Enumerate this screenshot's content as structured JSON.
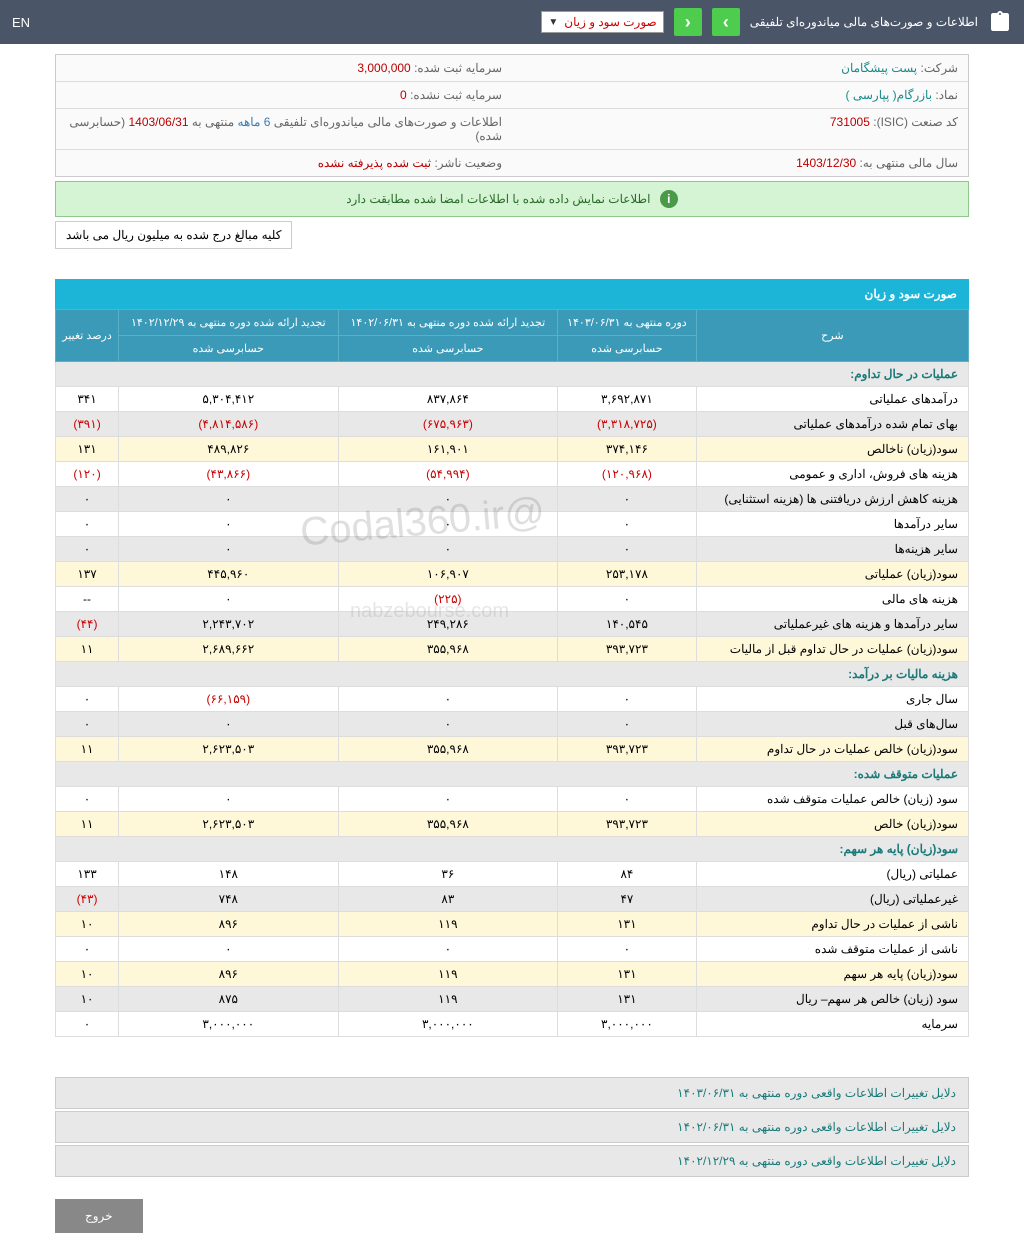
{
  "header": {
    "title": "اطلاعات و صورت‌های مالی میاندوره‌ای تلفیقی",
    "dropdown": "صورت سود و زیان",
    "lang": "EN"
  },
  "info": {
    "company_label": "شرکت:",
    "company": "پست پیشگامان",
    "capital_reg_label": "سرمایه ثبت شده:",
    "capital_reg": "3,000,000",
    "symbol_label": "نماد:",
    "symbol": "بازرگام( پپارسی )",
    "capital_unreg_label": "سرمایه ثبت نشده:",
    "capital_unreg": "0",
    "isic_label": "کد صنعت (ISIC):",
    "isic": "731005",
    "report_label": "اطلاعات و صورت‌های مالی میاندوره‌ای تلفیقی",
    "period": "6 ماهه",
    "ending": "منتهی به",
    "ending_date": "1403/06/31",
    "audited": "(حسابرسی شده)",
    "fiscal_label": "سال مالی منتهی به:",
    "fiscal": "1403/12/30",
    "status_label": "وضعیت ناشر:",
    "status": "ثبت شده پذیرفته نشده"
  },
  "alert": "اطلاعات نمایش داده شده با اطلاعات امضا شده مطابقت دارد",
  "note": "کلیه مبالغ درج شده به میلیون ریال می باشد",
  "table_title": "صورت سود و زیان",
  "columns": {
    "desc": "شرح",
    "c1_top": "دوره منتهی به ۱۴۰۳/۰۶/۳۱",
    "c1_sub": "حسابرسی شده",
    "c2_top": "تجدید ارائه شده دوره منتهی به ۱۴۰۲/۰۶/۳۱",
    "c2_sub": "حسابرسی شده",
    "c3_top": "تجدید ارائه شده دوره منتهی به ۱۴۰۲/۱۲/۲۹",
    "c3_sub": "حسابرسی شده",
    "pct": "درصد تغییر"
  },
  "sections": {
    "s1": "عملیات در حال تداوم:",
    "s2": "هزینه مالیات بر درآمد:",
    "s3": "عملیات متوقف شده:",
    "s4": "سود(زیان) پایه هر سهم:"
  },
  "rows": [
    {
      "cls": "row-white",
      "label": "درآمدهای عملیاتی",
      "v1": "۳,۶۹۲,۸۷۱",
      "v2": "۸۳۷,۸۶۴",
      "v3": "۵,۳۰۴,۴۱۲",
      "pct": "۳۴۱",
      "neg": []
    },
    {
      "cls": "row-gray",
      "label": "بهای تمام شده درآمدهای عملیاتی",
      "v1": "(۳,۳۱۸,۷۲۵)",
      "v2": "(۶۷۵,۹۶۳)",
      "v3": "(۴,۸۱۴,۵۸۶)",
      "pct": "(۳۹۱)",
      "neg": [
        "v1",
        "v2",
        "v3",
        "pct"
      ]
    },
    {
      "cls": "row-yellow",
      "label": "سود(زیان) ناخالص",
      "v1": "۳۷۴,۱۴۶",
      "v2": "۱۶۱,۹۰۱",
      "v3": "۴۸۹,۸۲۶",
      "pct": "۱۳۱",
      "neg": []
    },
    {
      "cls": "row-white",
      "label": "هزینه های فروش، اداری و عمومی",
      "v1": "(۱۲۰,۹۶۸)",
      "v2": "(۵۴,۹۹۴)",
      "v3": "(۴۳,۸۶۶)",
      "pct": "(۱۲۰)",
      "neg": [
        "v1",
        "v2",
        "v3",
        "pct"
      ]
    },
    {
      "cls": "row-gray",
      "label": "هزینه کاهش ارزش دریافتنی ها (هزینه استثنایی)",
      "v1": "۰",
      "v2": "۰",
      "v3": "۰",
      "pct": "۰",
      "neg": []
    },
    {
      "cls": "row-white",
      "label": "سایر درآمدها",
      "v1": "۰",
      "v2": "۰",
      "v3": "۰",
      "pct": "۰",
      "neg": []
    },
    {
      "cls": "row-gray",
      "label": "سایر هزینه‌ها",
      "v1": "۰",
      "v2": "۰",
      "v3": "۰",
      "pct": "۰",
      "neg": []
    },
    {
      "cls": "row-yellow",
      "label": "سود(زیان) عملیاتی",
      "v1": "۲۵۳,۱۷۸",
      "v2": "۱۰۶,۹۰۷",
      "v3": "۴۴۵,۹۶۰",
      "pct": "۱۳۷",
      "neg": []
    },
    {
      "cls": "row-white",
      "label": "هزینه های مالی",
      "v1": "۰",
      "v2": "(۲۲۵)",
      "v3": "۰",
      "pct": "--",
      "neg": [
        "v2"
      ]
    },
    {
      "cls": "row-gray",
      "label": "سایر درآمدها و هزینه های غیرعملیاتی",
      "v1": "۱۴۰,۵۴۵",
      "v2": "۲۴۹,۲۸۶",
      "v3": "۲,۲۴۳,۷۰۲",
      "pct": "(۴۴)",
      "neg": [
        "pct"
      ]
    },
    {
      "cls": "row-yellow",
      "label": "سود(زیان) عملیات در حال تداوم قبل از مالیات",
      "v1": "۳۹۳,۷۲۳",
      "v2": "۳۵۵,۹۶۸",
      "v3": "۲,۶۸۹,۶۶۲",
      "pct": "۱۱",
      "neg": []
    }
  ],
  "rows2": [
    {
      "cls": "row-white",
      "label": "سال جاری",
      "v1": "۰",
      "v2": "۰",
      "v3": "(۶۶,۱۵۹)",
      "pct": "۰",
      "neg": [
        "v3"
      ]
    },
    {
      "cls": "row-gray",
      "label": "سال‌های قبل",
      "v1": "۰",
      "v2": "۰",
      "v3": "۰",
      "pct": "۰",
      "neg": []
    },
    {
      "cls": "row-yellow",
      "label": "سود(زیان) خالص عملیات در حال تداوم",
      "v1": "۳۹۳,۷۲۳",
      "v2": "۳۵۵,۹۶۸",
      "v3": "۲,۶۲۳,۵۰۳",
      "pct": "۱۱",
      "neg": []
    }
  ],
  "rows3": [
    {
      "cls": "row-white",
      "label": "سود (زیان) خالص عملیات متوقف شده",
      "v1": "۰",
      "v2": "۰",
      "v3": "۰",
      "pct": "۰",
      "neg": []
    },
    {
      "cls": "row-yellow",
      "label": "سود(زیان) خالص",
      "v1": "۳۹۳,۷۲۳",
      "v2": "۳۵۵,۹۶۸",
      "v3": "۲,۶۲۳,۵۰۳",
      "pct": "۱۱",
      "neg": []
    }
  ],
  "rows4": [
    {
      "cls": "row-white",
      "label": "عملیاتی (ریال)",
      "v1": "۸۴",
      "v2": "۳۶",
      "v3": "۱۴۸",
      "pct": "۱۳۳",
      "neg": []
    },
    {
      "cls": "row-gray",
      "label": "غیرعملیاتی (ریال)",
      "v1": "۴۷",
      "v2": "۸۳",
      "v3": "۷۴۸",
      "pct": "(۴۳)",
      "neg": [
        "pct"
      ]
    },
    {
      "cls": "row-yellow",
      "label": "ناشی از عملیات در حال تداوم",
      "v1": "۱۳۱",
      "v2": "۱۱۹",
      "v3": "۸۹۶",
      "pct": "۱۰",
      "neg": []
    },
    {
      "cls": "row-white",
      "label": "ناشی از عملیات متوقف شده",
      "v1": "۰",
      "v2": "۰",
      "v3": "۰",
      "pct": "۰",
      "neg": []
    },
    {
      "cls": "row-yellow",
      "label": "سود(زیان) پایه هر سهم",
      "v1": "۱۳۱",
      "v2": "۱۱۹",
      "v3": "۸۹۶",
      "pct": "۱۰",
      "neg": []
    },
    {
      "cls": "row-gray",
      "label": "سود (زیان) خالص هر سهم– ریال",
      "v1": "۱۳۱",
      "v2": "۱۱۹",
      "v3": "۸۷۵",
      "pct": "۱۰",
      "neg": []
    },
    {
      "cls": "row-white",
      "label": "سرمایه",
      "v1": "۳,۰۰۰,۰۰۰",
      "v2": "۳,۰۰۰,۰۰۰",
      "v3": "۳,۰۰۰,۰۰۰",
      "pct": "۰",
      "neg": []
    }
  ],
  "footer": {
    "f1": "دلایل تغییرات اطلاعات واقعی دوره منتهی به ۱۴۰۳/۰۶/۳۱",
    "f2": "دلایل تغییرات اطلاعات واقعی دوره منتهی به ۱۴۰۲/۰۶/۳۱",
    "f3": "دلایل تغییرات اطلاعات واقعی دوره منتهی به ۱۴۰۲/۱۲/۲۹"
  },
  "exit": "خروج",
  "wm1": "@Codal360.ir",
  "wm2": "nabzebourse.com"
}
